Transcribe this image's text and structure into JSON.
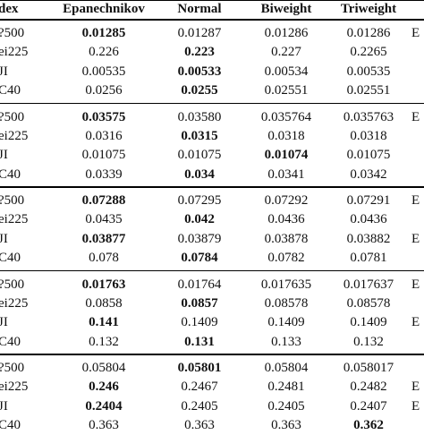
{
  "header": [
    "dex",
    "Epanechnikov",
    "Normal",
    "Biweight",
    "Triweight"
  ],
  "groups": [
    {
      "rows": [
        {
          "label": "?500",
          "values": [
            "0.01285",
            "0.01287",
            "0.01286",
            "0.01286"
          ],
          "bold": 0,
          "tail": "E"
        },
        {
          "label": "ei225",
          "values": [
            "0.226",
            "0.223",
            "0.227",
            "0.2265"
          ],
          "bold": 1,
          "tail": ""
        },
        {
          "label": "JI",
          "values": [
            "0.00535",
            "0.00533",
            "0.00534",
            "0.00535"
          ],
          "bold": 1,
          "tail": ""
        },
        {
          "label": "C40",
          "values": [
            "0.0256",
            "0.0255",
            "0.02551",
            "0.02551"
          ],
          "bold": 1,
          "tail": ""
        }
      ]
    },
    {
      "rows": [
        {
          "label": "?500",
          "values": [
            "0.03575",
            "0.03580",
            "0.035764",
            "0.035763"
          ],
          "bold": 0,
          "tail": "E"
        },
        {
          "label": "ei225",
          "values": [
            "0.0316",
            "0.0315",
            "0.0318",
            "0.0318"
          ],
          "bold": 1,
          "tail": ""
        },
        {
          "label": "JI",
          "values": [
            "0.01075",
            "0.01075",
            "0.01074",
            "0.01075"
          ],
          "bold": 2,
          "tail": ""
        },
        {
          "label": "C40",
          "values": [
            "0.0339",
            "0.034",
            "0.0341",
            "0.0342"
          ],
          "bold": 1,
          "tail": ""
        }
      ]
    },
    {
      "rows": [
        {
          "label": "?500",
          "values": [
            "0.07288",
            "0.07295",
            "0.07292",
            "0.07291"
          ],
          "bold": 0,
          "tail": "E"
        },
        {
          "label": "ei225",
          "values": [
            "0.0435",
            "0.042",
            "0.0436",
            "0.0436"
          ],
          "bold": 1,
          "tail": ""
        },
        {
          "label": "JI",
          "values": [
            "0.03877",
            "0.03879",
            "0.03878",
            "0.03882"
          ],
          "bold": 0,
          "tail": "E"
        },
        {
          "label": "C40",
          "values": [
            "0.078",
            "0.0784",
            "0.0782",
            "0.0781"
          ],
          "bold": 1,
          "tail": ""
        }
      ]
    },
    {
      "rows": [
        {
          "label": "?500",
          "values": [
            "0.01763",
            "0.01764",
            "0.017635",
            "0.017637"
          ],
          "bold": 0,
          "tail": "E"
        },
        {
          "label": "ei225",
          "values": [
            "0.0858",
            "0.0857",
            "0.08578",
            "0.08578"
          ],
          "bold": 1,
          "tail": ""
        },
        {
          "label": "JI",
          "values": [
            "0.141",
            "0.1409",
            "0.1409",
            "0.1409"
          ],
          "bold": 0,
          "tail": "E"
        },
        {
          "label": "C40",
          "values": [
            "0.132",
            "0.131",
            "0.133",
            "0.132"
          ],
          "bold": 1,
          "tail": ""
        }
      ]
    },
    {
      "rows": [
        {
          "label": "?500",
          "values": [
            "0.05804",
            "0.05801",
            "0.05804",
            "0.058017"
          ],
          "bold": 1,
          "tail": ""
        },
        {
          "label": "ei225",
          "values": [
            "0.246",
            "0.2467",
            "0.2481",
            "0.2482"
          ],
          "bold": 0,
          "tail": "E"
        },
        {
          "label": "JI",
          "values": [
            "0.2404",
            "0.2405",
            "0.2405",
            "0.2407"
          ],
          "bold": 0,
          "tail": "E"
        },
        {
          "label": "C40",
          "values": [
            "0.363",
            "0.363",
            "0.363",
            "0.362"
          ],
          "bold": 3,
          "tail": ""
        }
      ]
    }
  ]
}
